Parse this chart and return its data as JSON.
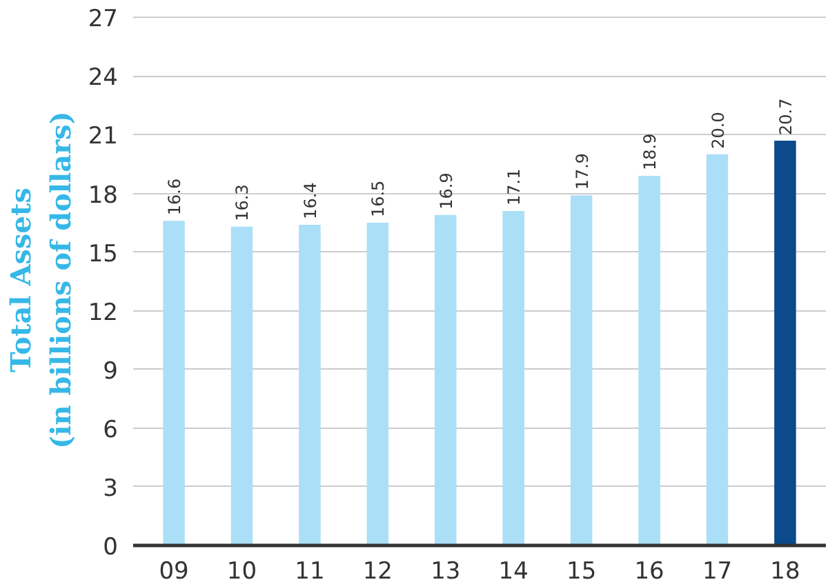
{
  "chart_data": {
    "type": "bar",
    "ylabel": "Total Assets\n(in billions of dollars)",
    "categories": [
      "09",
      "10",
      "11",
      "12",
      "13",
      "14",
      "15",
      "16",
      "17",
      "18"
    ],
    "values": [
      16.6,
      16.3,
      16.4,
      16.5,
      16.9,
      17.1,
      17.9,
      18.9,
      20.0,
      20.7
    ],
    "colors": [
      "#aadff7",
      "#aadff7",
      "#aadff7",
      "#aadff7",
      "#aadff7",
      "#aadff7",
      "#aadff7",
      "#aadff7",
      "#aadff7",
      "#0b4a8b"
    ],
    "ylim": [
      0,
      27
    ],
    "yticks": [
      0,
      3,
      6,
      9,
      12,
      15,
      18,
      21,
      24,
      27
    ],
    "value_labels": [
      "16.6",
      "16.3",
      "16.4",
      "16.5",
      "16.9",
      "17.1",
      "17.9",
      "18.9",
      "20.0",
      "20.7"
    ],
    "grid": "y"
  }
}
